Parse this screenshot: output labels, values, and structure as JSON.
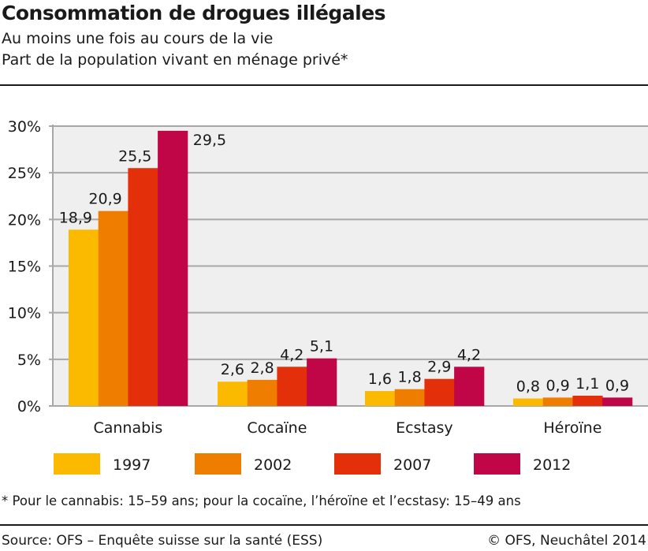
{
  "title": "Consommation de drogues illégales",
  "subtitle_lines": [
    "Au moins une fois au cours de la vie",
    "Part de la population vivant en ménage privé*"
  ],
  "footnote": "* Pour le cannabis: 15–59 ans; pour la cocaïne, l’héroïne et l’ecstasy: 15–49 ans",
  "source": "Source: OFS – Enquête suisse sur la santé (ESS)",
  "copyright": "© OFS, Neuchâtel 2014",
  "chart_data": {
    "type": "bar",
    "categories": [
      "Cannabis",
      "Cocaïne",
      "Ecstasy",
      "Héroïne"
    ],
    "series": [
      {
        "name": "1997",
        "color": "#FBBA00",
        "values": [
          18.9,
          2.6,
          1.6,
          0.8
        ],
        "labels": [
          "18,9",
          "2,6",
          "1,6",
          "0,8"
        ]
      },
      {
        "name": "2002",
        "color": "#EE7D00",
        "values": [
          20.9,
          2.8,
          1.8,
          0.9
        ],
        "labels": [
          "20,9",
          "2,8",
          "1,8",
          "0,9"
        ]
      },
      {
        "name": "2007",
        "color": "#E3300B",
        "values": [
          25.5,
          4.2,
          2.9,
          1.1
        ],
        "labels": [
          "25,5",
          "4,2",
          "2,9",
          "1,1"
        ]
      },
      {
        "name": "2012",
        "color": "#C00646",
        "values": [
          29.5,
          5.1,
          4.2,
          0.9
        ],
        "labels": [
          "29,5",
          "5,1",
          "4,2",
          "0,9"
        ]
      }
    ],
    "ylim": [
      0,
      30
    ],
    "yticks": [
      0,
      5,
      10,
      15,
      20,
      25,
      30
    ],
    "ytick_labels": [
      "0%",
      "5%",
      "10%",
      "15%",
      "20%",
      "25%",
      "30%"
    ],
    "grid": true,
    "background": "#EFEFEF",
    "legend_position": "bottom"
  }
}
